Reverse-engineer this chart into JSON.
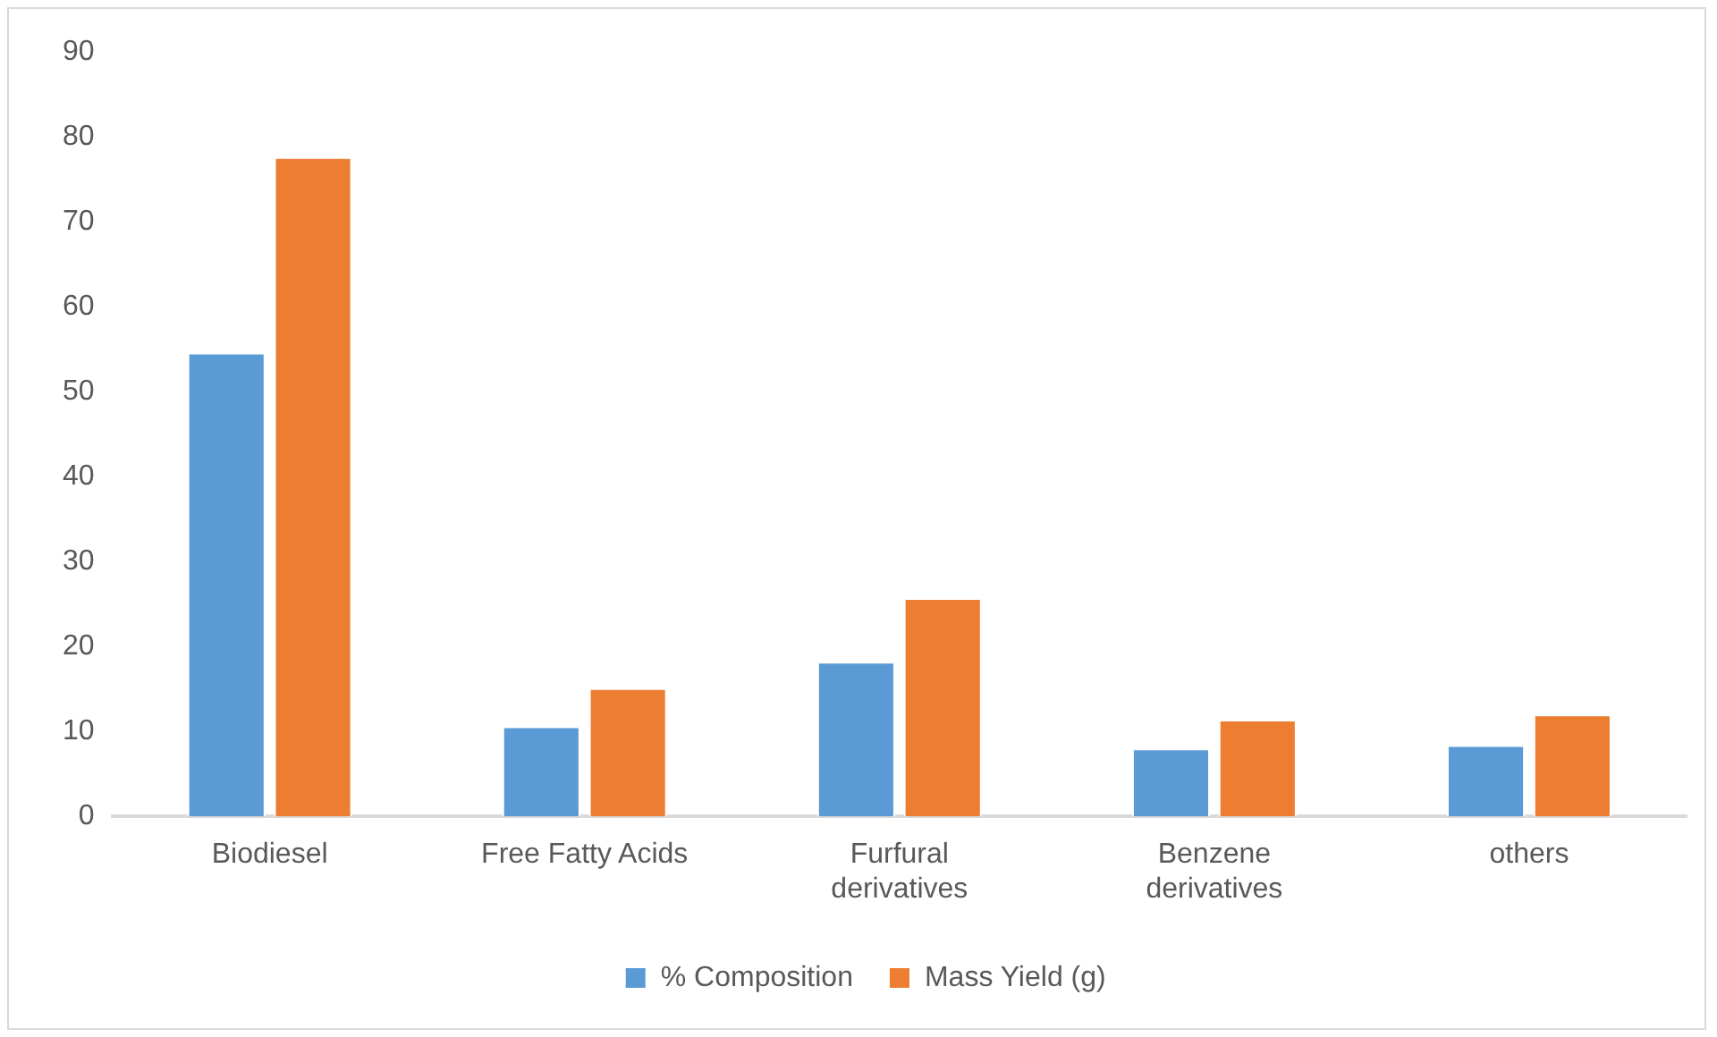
{
  "chart_data": {
    "type": "bar",
    "categories": [
      "Biodiesel",
      "Free Fatty Acids",
      "Furfural derivatives",
      "Benzene derivatives",
      "others"
    ],
    "series": [
      {
        "name": "% Composition",
        "color": "#5b9bd5",
        "values": [
          54.6,
          10.6,
          18.2,
          8.0,
          8.4
        ]
      },
      {
        "name": "Mass Yield (g)",
        "color": "#ed7d31",
        "values": [
          77.6,
          15.1,
          25.7,
          11.4,
          12.0
        ]
      }
    ],
    "ylim": [
      0,
      90
    ],
    "yticks": [
      0,
      10,
      20,
      30,
      40,
      50,
      60,
      70,
      80,
      90
    ],
    "grid": false,
    "legend": "bottom"
  }
}
